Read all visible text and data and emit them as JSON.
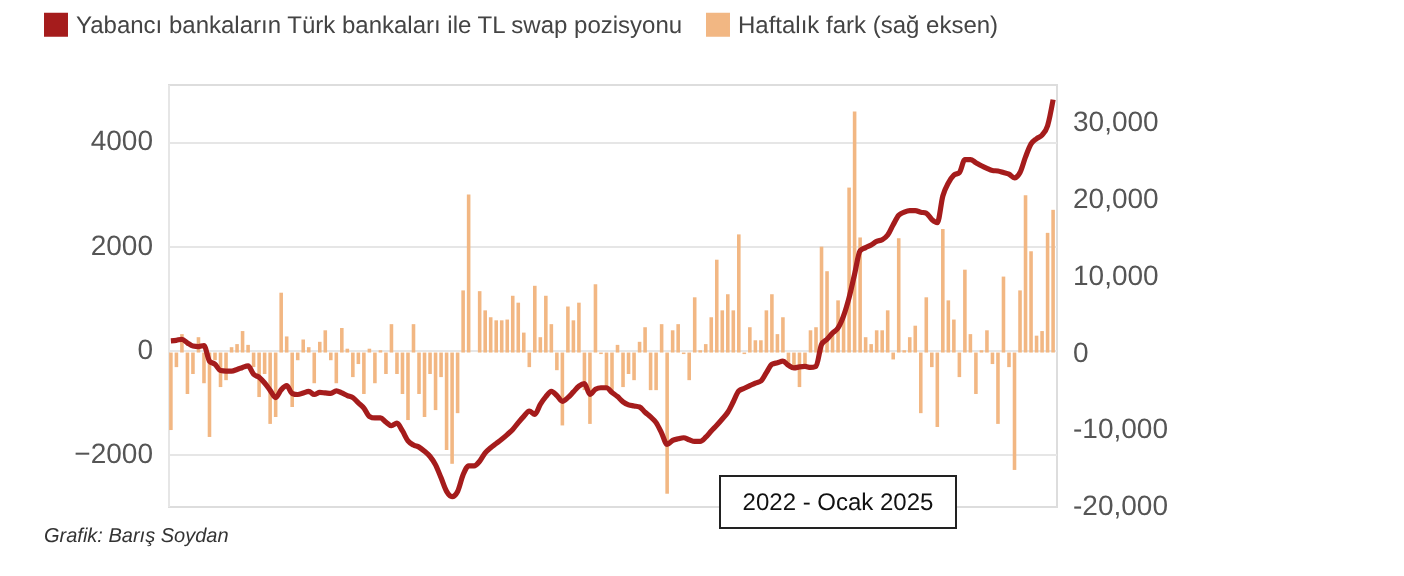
{
  "chart_data": {
    "type": "line",
    "legend": "top left",
    "grid": "y",
    "tick_labels": "y",
    "categories": [
      null,
      null,
      null,
      null,
      null,
      null,
      null,
      null,
      null,
      null,
      null,
      null,
      null,
      null,
      null,
      null,
      null,
      null,
      null,
      null,
      null,
      null,
      null,
      null,
      null,
      null,
      null,
      null,
      null,
      null,
      null,
      null,
      null,
      null,
      null,
      null,
      null,
      null,
      null,
      null,
      null,
      null,
      null,
      null,
      null,
      null,
      null,
      null,
      null,
      null,
      null,
      null,
      null,
      null,
      null,
      null,
      null,
      null,
      null,
      null,
      null,
      null,
      null,
      null,
      null,
      null,
      null,
      null,
      null,
      null,
      null,
      null,
      null,
      null,
      null,
      null,
      null,
      null,
      null,
      null,
      null,
      null,
      null,
      null,
      null,
      null,
      null,
      null,
      null,
      null,
      null,
      null,
      null,
      null,
      null,
      null,
      null,
      null,
      null,
      null,
      null,
      null,
      null,
      null,
      null,
      null,
      null,
      null,
      null,
      null,
      null,
      null,
      null,
      null,
      null,
      null,
      null,
      null,
      null,
      null,
      null,
      null,
      null,
      null,
      null,
      null,
      null,
      null,
      null,
      null,
      null,
      null,
      null,
      null,
      null,
      null,
      null,
      null,
      null,
      null,
      null,
      null,
      null,
      null,
      null,
      null,
      null,
      null,
      null,
      null,
      null,
      null,
      null,
      null,
      null,
      null,
      null,
      null,
      null,
      null,
      null
    ],
    "series": [
      {
        "name": "Yabancı bankaların Türk bankaları ile TL swap pozisyonu",
        "axis": "y",
        "color": "#a51c1c",
        "values": [
          170,
          180,
          200,
          130,
          70,
          60,
          80,
          -220,
          -280,
          -400,
          -410,
          -410,
          -380,
          -340,
          -310,
          -470,
          -530,
          -640,
          -780,
          -920,
          -770,
          -690,
          -840,
          -860,
          -830,
          -800,
          -860,
          -820,
          -830,
          -840,
          -790,
          -830,
          -880,
          -920,
          -1020,
          -1120,
          -1280,
          -1310,
          -1310,
          -1390,
          -1460,
          -1410,
          -1560,
          -1750,
          -1830,
          -1870,
          -1950,
          -2050,
          -2210,
          -2460,
          -2720,
          -2820,
          -2720,
          -2400,
          -2230,
          -2230,
          -2140,
          -1980,
          -1880,
          -1800,
          -1720,
          -1630,
          -1530,
          -1400,
          -1280,
          -1180,
          -1240,
          -1050,
          -900,
          -800,
          -880,
          -990,
          -920,
          -810,
          -700,
          -650,
          -860,
          -760,
          -730,
          -730,
          -820,
          -900,
          -1000,
          -1060,
          -1080,
          -1100,
          -1200,
          -1290,
          -1400,
          -1600,
          -1820,
          -1740,
          -1710,
          -1690,
          -1730,
          -1760,
          -1760,
          -1680,
          -1560,
          -1450,
          -1330,
          -1200,
          -1000,
          -790,
          -740,
          -690,
          -640,
          -600,
          -440,
          -280,
          -250,
          -220,
          -300,
          -350,
          -330,
          -320,
          -340,
          -320,
          100,
          200,
          320,
          420,
          650,
          1000,
          1450,
          1900,
          1960,
          2010,
          2080,
          2110,
          2200,
          2400,
          2580,
          2640,
          2670,
          2670,
          2640,
          2620,
          2500,
          2440,
          2950,
          3200,
          3350,
          3400,
          3650,
          3650,
          3590,
          3530,
          3480,
          3440,
          3430,
          3400,
          3370,
          3300,
          3400,
          3700,
          3950,
          4050,
          4120,
          4300,
          4800
        ]
      },
      {
        "name": "Haftalık fark (sağ eksen)",
        "type": "bar",
        "axis": "y2",
        "color": "#f2b783",
        "values": [
          -10100,
          -1900,
          2400,
          -5400,
          -2800,
          2000,
          -4000,
          -11000,
          -1000,
          -4500,
          -3600,
          700,
          1100,
          2800,
          1000,
          -1900,
          -5800,
          -2800,
          -9300,
          -8400,
          7800,
          2100,
          -7100,
          -1000,
          1700,
          700,
          -4000,
          1400,
          2900,
          -1000,
          -4000,
          3200,
          500,
          -3200,
          -1500,
          -5400,
          500,
          -4000,
          300,
          -2800,
          3700,
          -2800,
          -5400,
          -8800,
          3700,
          -5400,
          -8400,
          -2800,
          -7500,
          -3200,
          -12700,
          -14500,
          -7900,
          8100,
          20600,
          null,
          8000,
          5500,
          4600,
          4200,
          4200,
          4300,
          7400,
          6500,
          2600,
          -1900,
          8700,
          2000,
          7400,
          3700,
          -2300,
          -9500,
          6000,
          4200,
          6500,
          -4900,
          -9300,
          8900,
          -200,
          -4900,
          -5400,
          1000,
          -4500,
          -2800,
          -3600,
          1400,
          3300,
          -4900,
          -4900,
          3700,
          -18400,
          2900,
          3700,
          -200,
          -3600,
          7200,
          300,
          1100,
          4600,
          12100,
          5500,
          7600,
          5500,
          15400,
          -200,
          3300,
          1600,
          1600,
          5500,
          7600,
          2400,
          4600,
          -1500,
          -1900,
          -4500,
          -1900,
          2900,
          3300,
          13800,
          10600,
          2400,
          6800,
          5000,
          21500,
          31400,
          15000,
          2000,
          1100,
          2900,
          2900,
          5500,
          -900,
          14900,
          300,
          2000,
          3500,
          -7900,
          7200,
          -1900,
          -9700,
          16100,
          6800,
          4300,
          -3200,
          10800,
          2400,
          -5400,
          300,
          2900,
          -1500,
          -9300,
          9900,
          -1900,
          -15300,
          8100,
          20500,
          13200,
          2200,
          2800,
          15600,
          18600
        ]
      }
    ],
    "ylim": [
      -3000,
      5100
    ],
    "yticks": [
      -2000,
      0,
      2000,
      4000
    ],
    "y2lim": [
      -20000,
      35000
    ],
    "y2ticks": [
      {
        "value": -20000,
        "label": "-20,000"
      },
      {
        "value": -10000,
        "label": "-10,000"
      },
      0,
      {
        "value": 10000,
        "label": "10,000"
      },
      {
        "value": 20000,
        "label": "20,000"
      },
      {
        "value": 30000,
        "label": "30,000"
      }
    ],
    "annotations": [
      "Grafik: Barış Soydan",
      "2022 - Ocak 2025"
    ]
  }
}
